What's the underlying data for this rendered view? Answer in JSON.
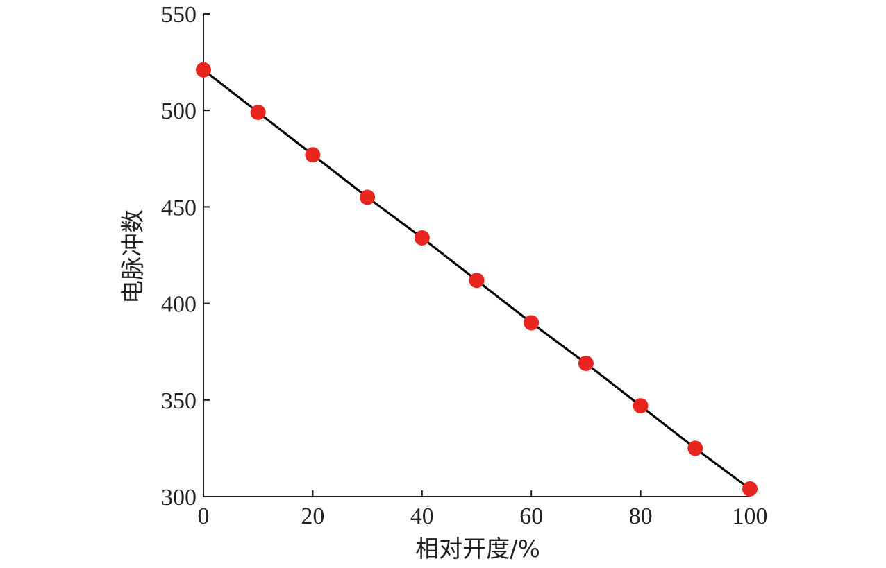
{
  "chart_data": {
    "type": "line",
    "title": "",
    "xlabel": "相对开度/%",
    "ylabel": "电脉冲数",
    "xlim": [
      0,
      100
    ],
    "ylim": [
      300,
      550
    ],
    "xticks": [
      0,
      20,
      40,
      60,
      80,
      100
    ],
    "yticks": [
      300,
      350,
      400,
      450,
      500,
      550
    ],
    "grid": false,
    "legend": "none",
    "series": [
      {
        "x": [
          0,
          10,
          20,
          30,
          40,
          50,
          60,
          70,
          80,
          90,
          100
        ],
        "values": [
          521,
          499,
          477,
          455,
          434,
          412,
          390,
          369,
          347,
          325,
          304
        ],
        "line_color": "#000000",
        "marker_color": "#e8251f",
        "marker": "circle"
      }
    ]
  }
}
